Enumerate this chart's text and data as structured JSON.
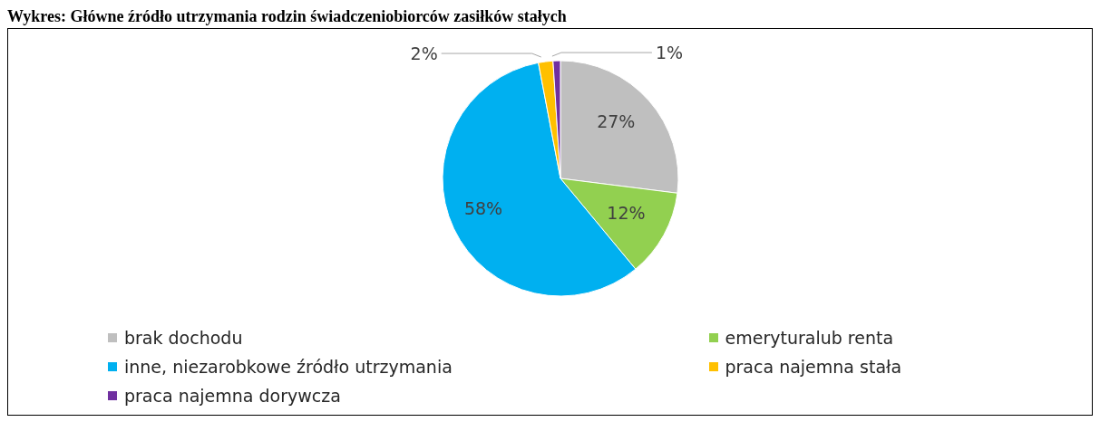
{
  "chart_data": {
    "type": "pie",
    "title": "Wykres: Główne źródło utrzymania rodzin świadczeniobiorców zasiłków stałych",
    "categories": [
      "brak dochodu",
      "emeryturalub renta",
      "inne, niezarobkowe źródło utrzymania",
      "praca najemna stała",
      "praca najemna dorywcza"
    ],
    "values": [
      27,
      12,
      58,
      2,
      1
    ],
    "colors": [
      "#bfbfbf",
      "#92d050",
      "#00b0f0",
      "#ffc000",
      "#7030a0"
    ],
    "value_labels": [
      "27%",
      "12%",
      "58%",
      "2%",
      "1%"
    ],
    "legend": "bottom"
  }
}
